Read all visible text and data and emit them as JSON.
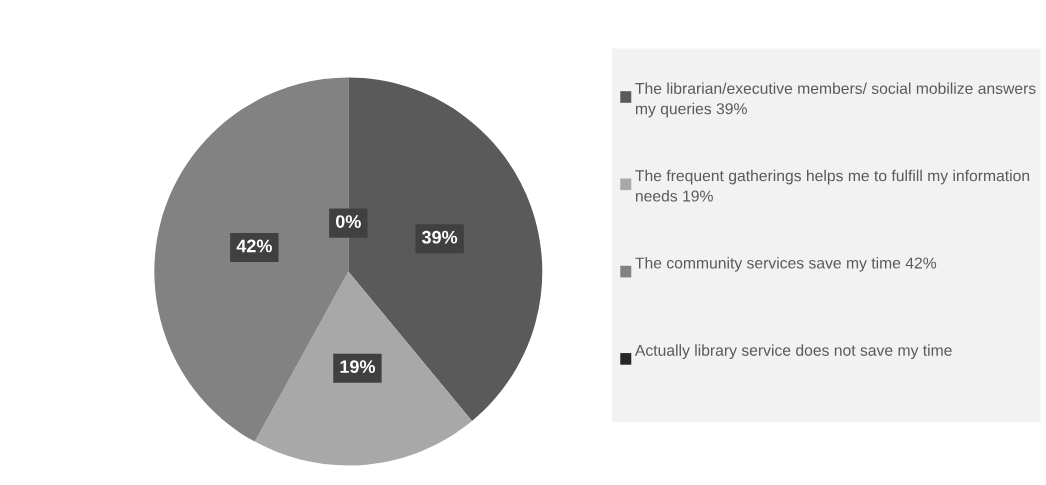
{
  "chart_data": {
    "type": "pie",
    "categories": [
      "The librarian/executive members/ social mobilize answers my queries 39%",
      "The frequent gatherings helps me to fulfill my information needs 19%",
      "The community services save my time 42%",
      "Actually library service does not save my time"
    ],
    "values": [
      39,
      19,
      42,
      0
    ],
    "colors": [
      "#5a5a5a",
      "#a8a8a8",
      "#828282",
      "#262626"
    ],
    "value_labels": [
      "39%",
      "19%",
      "42%",
      "0%"
    ],
    "legend": "right"
  }
}
